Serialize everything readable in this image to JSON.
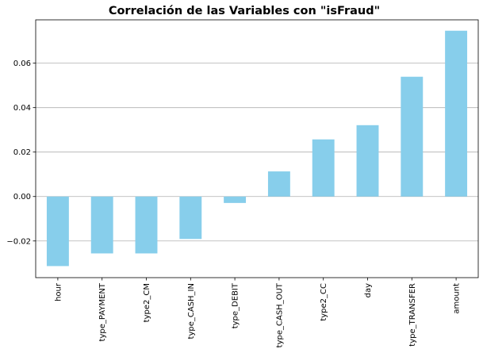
{
  "chart_data": {
    "type": "bar",
    "title": "Correlación de las Variables con \"isFraud\"",
    "xlabel": "",
    "ylabel": "",
    "categories": [
      "hour",
      "type_PAYMENT",
      "type2_CM",
      "type_CASH_IN",
      "type_DEBIT",
      "type_CASH_OUT",
      "type2_CC",
      "day",
      "type_TRANSFER",
      "amount"
    ],
    "values": [
      -0.0313,
      -0.0256,
      -0.0256,
      -0.0191,
      -0.0029,
      0.0113,
      0.0257,
      0.0321,
      0.0539,
      0.0746
    ],
    "ylim": [
      -0.0365,
      0.0795
    ],
    "yticks": [
      -0.02,
      0.0,
      0.02,
      0.04,
      0.06
    ],
    "ytick_labels": [
      "−0.02",
      "0.00",
      "0.02",
      "0.04",
      "0.06"
    ],
    "grid": "horizontal",
    "bar_color": "#87ceeb",
    "legend": "none"
  }
}
